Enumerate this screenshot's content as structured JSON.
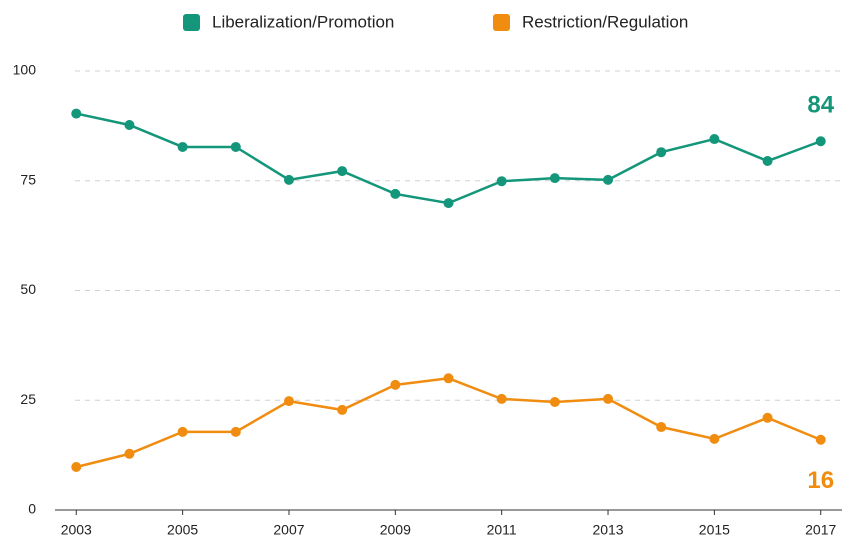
{
  "chart_data": {
    "type": "line",
    "x": [
      2003,
      2004,
      2005,
      2006,
      2007,
      2008,
      2009,
      2010,
      2011,
      2012,
      2013,
      2014,
      2015,
      2016,
      2017
    ],
    "series": [
      {
        "name": "Liberalization/Promotion",
        "color": "#13967a",
        "values": [
          90.3,
          87.7,
          82.7,
          82.7,
          75.2,
          77.2,
          72,
          69.9,
          74.9,
          75.6,
          75.2,
          81.5,
          84.5,
          79.5,
          84
        ]
      },
      {
        "name": "Restriction/Regulation",
        "color": "#f08c0f",
        "values": [
          9.8,
          12.8,
          17.8,
          17.8,
          24.8,
          22.8,
          28.5,
          30,
          25.3,
          24.6,
          25.3,
          18.9,
          16.2,
          21,
          16
        ]
      }
    ],
    "xlim": [
      2002.6,
      2017.4
    ],
    "xticks": [
      2003,
      2005,
      2007,
      2009,
      2011,
      2013,
      2015,
      2017
    ],
    "ylim": [
      0,
      100
    ],
    "yticks": [
      0,
      25,
      50,
      75,
      100
    ],
    "grid": true,
    "legend": "top"
  }
}
